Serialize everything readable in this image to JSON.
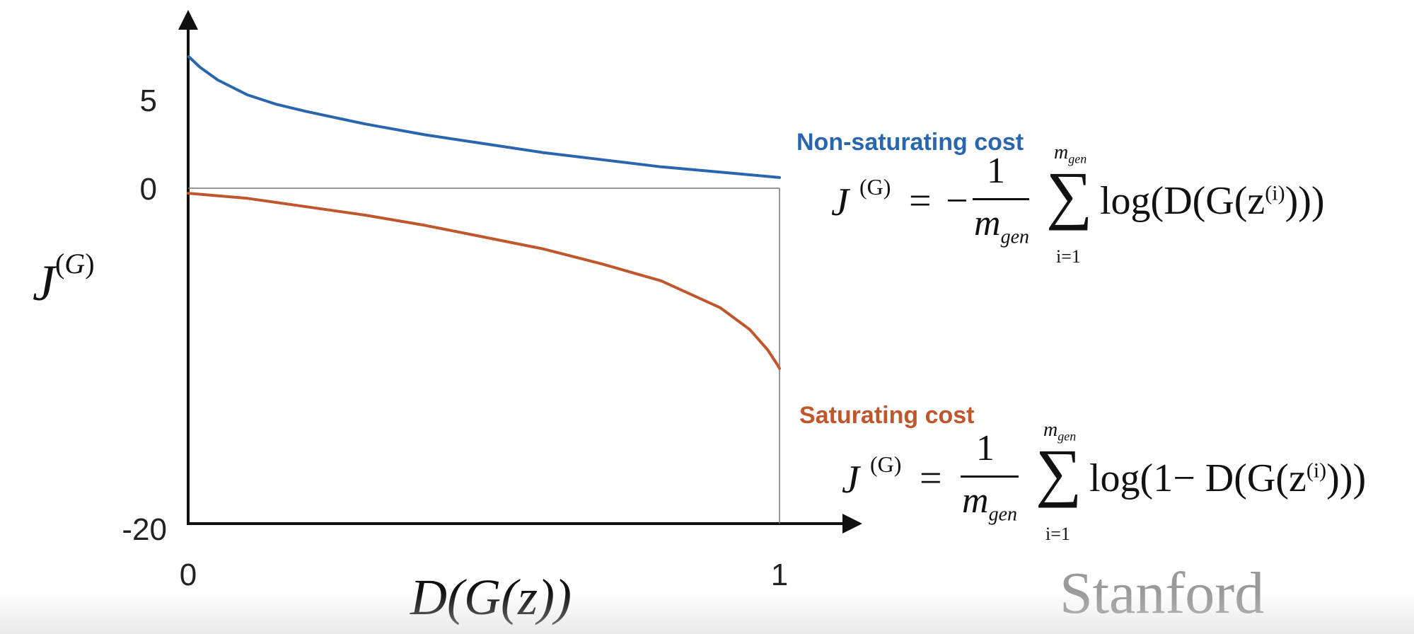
{
  "chart_data": {
    "type": "line",
    "xlabel": "D(G(z))",
    "ylabel": "J(G)",
    "xlim": [
      0,
      1
    ],
    "ylim": [
      -20,
      7
    ],
    "x_ticks": [
      "0",
      "1"
    ],
    "y_ticks": [
      "5",
      "0",
      "-20"
    ],
    "y_tick_values": [
      5,
      0,
      -20
    ],
    "grid": false,
    "series": [
      {
        "name": "Non-saturating cost",
        "color": "#2a66b0",
        "x": [
          0.001,
          0.02,
          0.05,
          0.1,
          0.15,
          0.2,
          0.3,
          0.4,
          0.5,
          0.6,
          0.7,
          0.8,
          0.9,
          1.0
        ],
        "y": [
          7.6,
          6.5,
          5.9,
          5.2,
          4.7,
          4.3,
          3.6,
          3.0,
          2.5,
          2.0,
          1.6,
          1.2,
          0.9,
          0.6
        ]
      },
      {
        "name": "Saturating cost",
        "color": "#c0562b",
        "x": [
          0.0,
          0.1,
          0.2,
          0.3,
          0.4,
          0.5,
          0.6,
          0.7,
          0.8,
          0.9,
          0.95,
          0.98,
          0.995,
          1.0
        ],
        "y": [
          -0.3,
          -0.6,
          -1.1,
          -1.6,
          -2.2,
          -2.9,
          -3.6,
          -4.5,
          -5.5,
          -7.1,
          -8.4,
          -9.6,
          -10.4,
          -10.7
        ]
      }
    ]
  },
  "legend": {
    "nonsat_label": "Non-saturating cost",
    "sat_label": "Saturating cost"
  },
  "formulas": {
    "nonsat": {
      "lhs_sup": "(G)",
      "sign": "−",
      "numerator": "1",
      "denominator_main": "m",
      "denominator_sub": "gen",
      "sum_upper_main": "m",
      "sum_upper_sub": "gen",
      "sum_lower": "i=1",
      "body_pre": "log(D(G(z",
      "body_sup": "(i)",
      "body_post": ")))"
    },
    "sat": {
      "lhs_sup": "(G)",
      "numerator": "1",
      "denominator_main": "m",
      "denominator_sub": "gen",
      "sum_upper_main": "m",
      "sum_upper_sub": "gen",
      "sum_lower": "i=1",
      "body_pre": "log(1− D(G(z",
      "body_sup": "(i)",
      "body_post": ")))"
    }
  },
  "watermark": "Stanford"
}
